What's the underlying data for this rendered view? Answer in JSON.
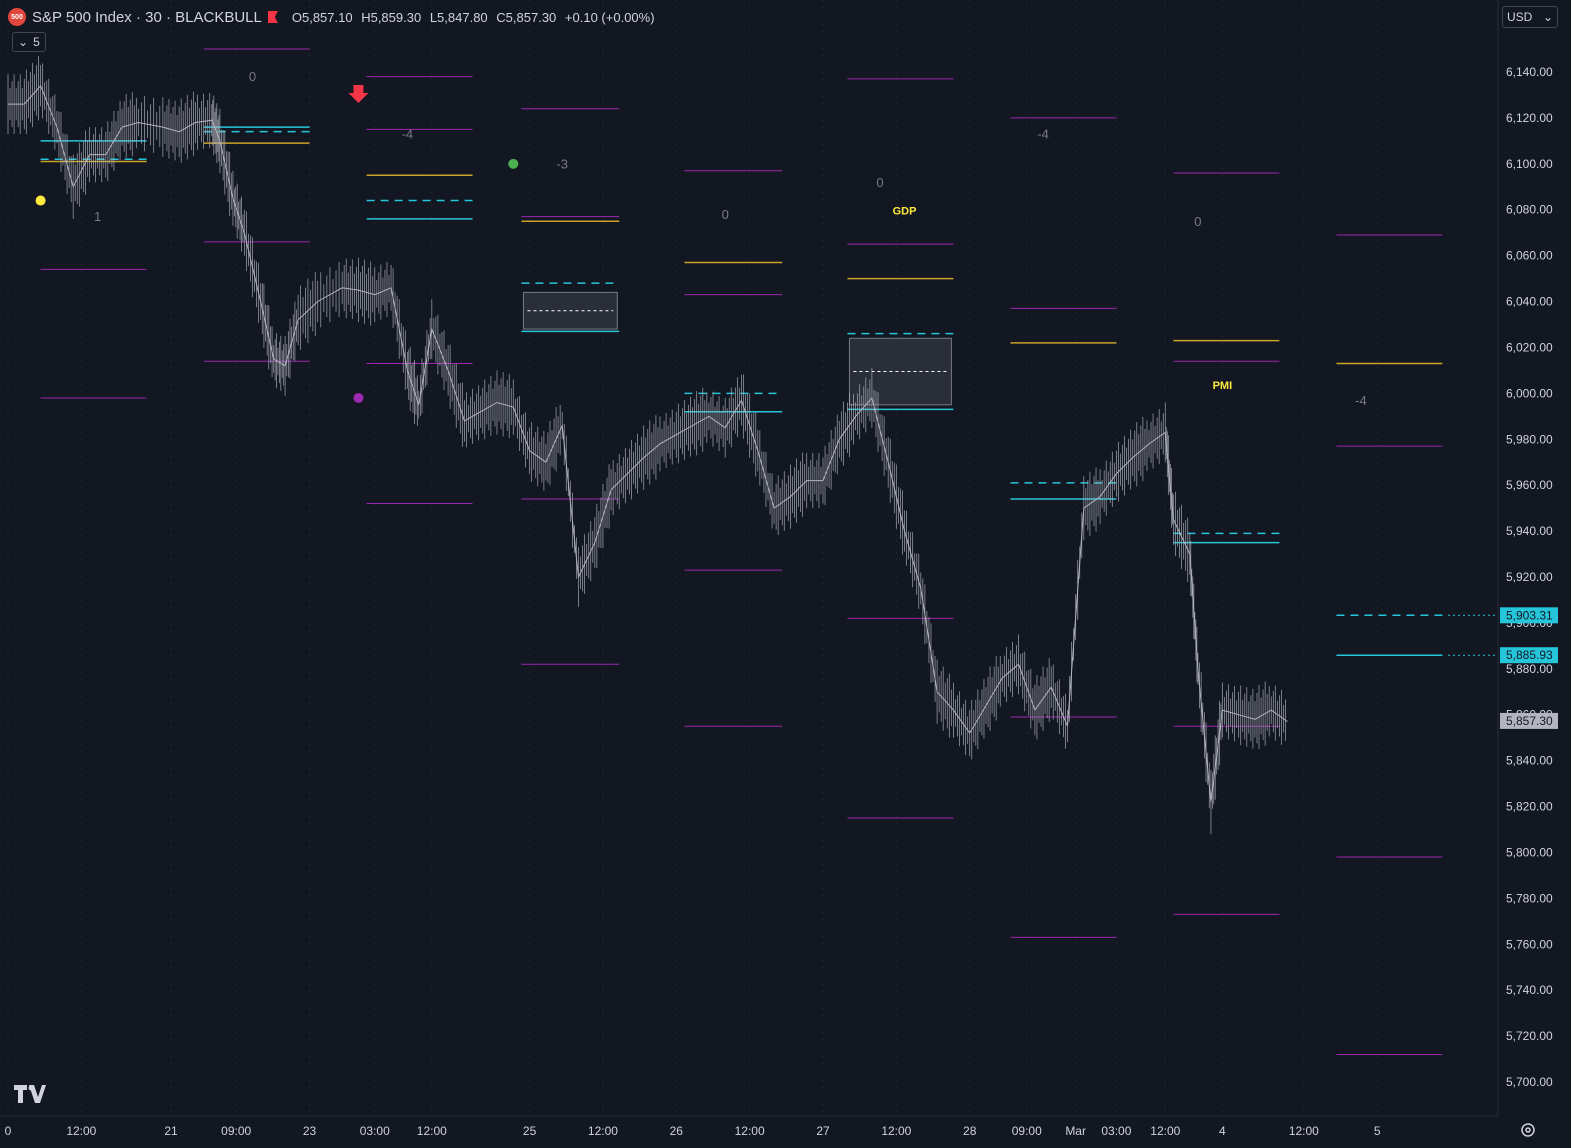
{
  "header": {
    "symbol_badge": "500",
    "title": "S&P 500 Index · 30 · BLACKBULL",
    "flag_icon": "flag-icon",
    "ohlc": {
      "open": "O5,857.10",
      "high": "H5,859.30",
      "low": "L5,847.80",
      "close": "C5,857.30",
      "change": "+0.10 (+0.00%)"
    },
    "indicator_count": "5"
  },
  "currency": "USD",
  "colors": {
    "background": "#131722",
    "price_line": "#b2b5be",
    "magenta_level": "#9c27b0",
    "cyan_level": "#26c6da",
    "gold_level": "#c9a227",
    "event_label": "#ffeb3b",
    "signal_arrow": "#f23645",
    "axis_text": "#d1d4dc",
    "grid": "#2a2e39"
  },
  "chart_data": {
    "type": "candlestick",
    "title": "S&P 500 Index · 30 · BLACKBULL",
    "ylim": [
      5690,
      6150
    ],
    "y_ticks": [
      "6,140.00",
      "6,120.00",
      "6,100.00",
      "6,080.00",
      "6,060.00",
      "6,040.00",
      "6,020.00",
      "6,000.00",
      "5,980.00",
      "5,960.00",
      "5,940.00",
      "5,920.00",
      "5,900.00",
      "5,880.00",
      "5,860.00",
      "5,840.00",
      "5,820.00",
      "5,800.00",
      "5,780.00",
      "5,760.00",
      "5,740.00",
      "5,720.00",
      "5,700.00"
    ],
    "y_tick_values": [
      6140,
      6120,
      6100,
      6080,
      6060,
      6040,
      6020,
      6000,
      5980,
      5960,
      5940,
      5920,
      5900,
      5880,
      5860,
      5840,
      5820,
      5800,
      5780,
      5760,
      5740,
      5720,
      5700
    ],
    "x_ticks": [
      "0",
      "12:00",
      "21",
      "09:00",
      "23",
      "03:00",
      "12:00",
      "25",
      "12:00",
      "26",
      "12:00",
      "27",
      "12:00",
      "28",
      "09:00",
      "Mar",
      "03:00",
      "12:00",
      "4",
      "12:00",
      "5"
    ],
    "x_tick_days": [
      0,
      0.45,
      1.0,
      1.4,
      1.85,
      2.25,
      2.6,
      3.2,
      3.65,
      4.1,
      4.55,
      5.0,
      5.45,
      5.9,
      6.25,
      6.55,
      6.8,
      7.1,
      7.45,
      7.95,
      8.4
    ],
    "price_path": [
      [
        0,
        6126
      ],
      [
        0.1,
        6126
      ],
      [
        0.2,
        6134
      ],
      [
        0.3,
        6116
      ],
      [
        0.4,
        6090
      ],
      [
        0.5,
        6104
      ],
      [
        0.6,
        6104
      ],
      [
        0.7,
        6116
      ],
      [
        0.8,
        6118
      ],
      [
        0.95,
        6116
      ],
      [
        1.05,
        6114
      ],
      [
        1.15,
        6118
      ],
      [
        1.25,
        6119
      ],
      [
        1.3,
        6110
      ],
      [
        1.38,
        6085
      ],
      [
        1.45,
        6070
      ],
      [
        1.55,
        6040
      ],
      [
        1.63,
        6015
      ],
      [
        1.7,
        6012
      ],
      [
        1.78,
        6032
      ],
      [
        1.9,
        6040
      ],
      [
        2.05,
        6046
      ],
      [
        2.15,
        6045
      ],
      [
        2.25,
        6043
      ],
      [
        2.35,
        6046
      ],
      [
        2.45,
        6010
      ],
      [
        2.52,
        5995
      ],
      [
        2.6,
        6028
      ],
      [
        2.7,
        6010
      ],
      [
        2.8,
        5988
      ],
      [
        2.9,
        5992
      ],
      [
        3.0,
        5996
      ],
      [
        3.1,
        5994
      ],
      [
        3.2,
        5975
      ],
      [
        3.3,
        5970
      ],
      [
        3.4,
        5986
      ],
      [
        3.5,
        5920
      ],
      [
        3.6,
        5935
      ],
      [
        3.7,
        5958
      ],
      [
        3.8,
        5965
      ],
      [
        3.9,
        5972
      ],
      [
        4.0,
        5978
      ],
      [
        4.1,
        5982
      ],
      [
        4.2,
        5986
      ],
      [
        4.3,
        5990
      ],
      [
        4.4,
        5985
      ],
      [
        4.5,
        5997
      ],
      [
        4.6,
        5975
      ],
      [
        4.7,
        5950
      ],
      [
        4.8,
        5955
      ],
      [
        4.9,
        5962
      ],
      [
        5.0,
        5962
      ],
      [
        5.1,
        5980
      ],
      [
        5.2,
        5990
      ],
      [
        5.3,
        5998
      ],
      [
        5.4,
        5970
      ],
      [
        5.5,
        5940
      ],
      [
        5.6,
        5915
      ],
      [
        5.7,
        5870
      ],
      [
        5.8,
        5862
      ],
      [
        5.9,
        5852
      ],
      [
        6.0,
        5864
      ],
      [
        6.1,
        5876
      ],
      [
        6.2,
        5882
      ],
      [
        6.3,
        5862
      ],
      [
        6.4,
        5872
      ],
      [
        6.5,
        5855
      ],
      [
        6.6,
        5950
      ],
      [
        6.7,
        5955
      ],
      [
        6.8,
        5965
      ],
      [
        6.9,
        5972
      ],
      [
        7.0,
        5978
      ],
      [
        7.1,
        5983
      ],
      [
        7.15,
        5945
      ],
      [
        7.25,
        5930
      ],
      [
        7.3,
        5880
      ],
      [
        7.38,
        5822
      ],
      [
        7.45,
        5862
      ],
      [
        7.55,
        5860
      ],
      [
        7.65,
        5858
      ],
      [
        7.75,
        5862
      ],
      [
        7.85,
        5857
      ]
    ],
    "last_price_label": "5,857.30",
    "markers": [
      {
        "day": 0.2,
        "price": 6084,
        "type": "dot",
        "color": "#ffeb3b"
      },
      {
        "day": 2.15,
        "price": 6130,
        "type": "arrow-down",
        "color": "#f23645"
      },
      {
        "day": 2.15,
        "price": 5998,
        "type": "dot",
        "color": "#9c27b0"
      },
      {
        "day": 3.1,
        "price": 6100,
        "type": "dot",
        "color": "#4caf50"
      }
    ],
    "text_labels": [
      {
        "day": 0.55,
        "price": 6075,
        "text": "1"
      },
      {
        "day": 1.5,
        "price": 6136,
        "text": "0"
      },
      {
        "day": 2.45,
        "price": 6111,
        "text": "-4"
      },
      {
        "day": 3.4,
        "price": 6098,
        "text": "-3"
      },
      {
        "day": 4.4,
        "price": 6076,
        "text": "0"
      },
      {
        "day": 5.35,
        "price": 6090,
        "text": "0"
      },
      {
        "day": 6.35,
        "price": 6111,
        "text": "-4"
      },
      {
        "day": 7.3,
        "price": 6073,
        "text": "0"
      },
      {
        "day": 8.3,
        "price": 5995,
        "text": "-4"
      }
    ],
    "event_labels": [
      {
        "day": 5.5,
        "price": 6078,
        "text": "GDP"
      },
      {
        "day": 7.45,
        "price": 6002,
        "text": "PMI"
      }
    ],
    "sessions": [
      {
        "start": 0.2,
        "end": 0.85,
        "mag_top": null,
        "mag_mid": 6054,
        "mag_bot": 5998,
        "cyan_dash": 6102,
        "cyan": 6110,
        "gold": 6101
      },
      {
        "start": 1.2,
        "end": 1.85,
        "mag_top": 6150,
        "mag_mid": 6066,
        "mag_bot": 6014,
        "cyan_dash": 6114,
        "cyan": 6116,
        "gold": 6109
      },
      {
        "start": 2.2,
        "end": 2.85,
        "mag_top": 6138,
        "mag_mid": 6115,
        "mag_bot": 5952,
        "mag_low2": 6013,
        "cyan_dash": 6084,
        "cyan": 6076,
        "gold": 6095
      },
      {
        "start": 3.15,
        "end": 3.75,
        "mag_top": 6124,
        "mag_mid": 6077,
        "mag_bot": 5882,
        "mag_low2": 5954,
        "cyan_dash": 6048,
        "cyan": 6027,
        "gold": 6075,
        "box": [
          6028,
          6044
        ]
      },
      {
        "start": 4.15,
        "end": 4.75,
        "mag_top": 6097,
        "mag_mid": 6043,
        "mag_bot": 5855,
        "mag_low2": 5923,
        "cyan_dash": 6000,
        "cyan": 5992,
        "gold": 6057
      },
      {
        "start": 5.15,
        "end": 5.8,
        "mag_top": 6137,
        "mag_mid": 6065,
        "mag_bot": 5815,
        "mag_low2": 5902,
        "cyan_dash": 6026,
        "cyan": 5993,
        "gold": 6050,
        "box": [
          5995,
          6024
        ]
      },
      {
        "start": 6.15,
        "end": 6.8,
        "mag_top": 6120,
        "mag_mid": 6037,
        "mag_bot": 5763,
        "mag_low2": 5859,
        "cyan_dash": 5961,
        "cyan": 5954,
        "gold": 6022
      },
      {
        "start": 7.15,
        "end": 7.8,
        "mag_top": 6096,
        "mag_mid": 6014,
        "mag_bot": 5773,
        "mag_low2": 5855,
        "cyan_dash": 5939,
        "cyan": 5935,
        "gold": 6023
      },
      {
        "start": 8.15,
        "end": 8.8,
        "mag_top": 6069,
        "mag_mid": 5977,
        "mag_bot": 5712,
        "mag_low2": 5798,
        "cyan_dash": 5903.31,
        "cyan": 5885.93,
        "gold": 6013
      }
    ],
    "price_tags": [
      {
        "price": 5903.31,
        "text": "5,903.31",
        "color": "#26c6da"
      },
      {
        "price": 5885.93,
        "text": "5,885.93",
        "color": "#26c6da"
      }
    ]
  }
}
